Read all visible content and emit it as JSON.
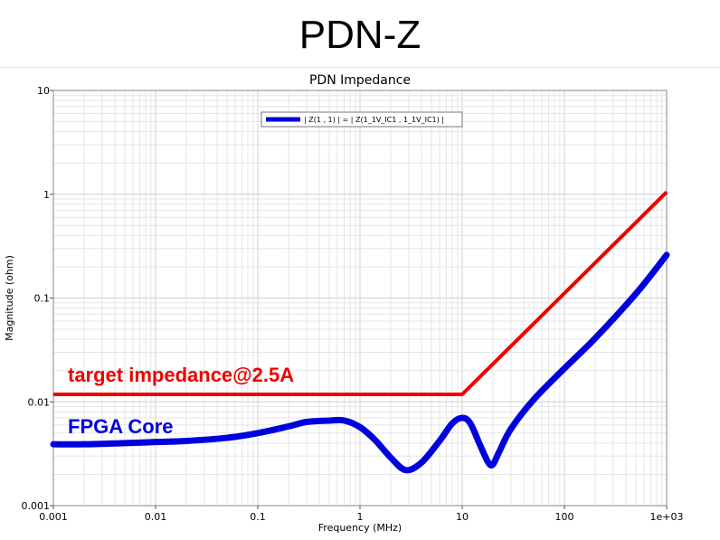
{
  "slide": {
    "title": "PDN-Z"
  },
  "chart_data": {
    "type": "line",
    "title": "PDN Impedance",
    "xlabel": "Frequency (MHz)",
    "ylabel": "Magnitude (ohm)",
    "x_scale": "log",
    "y_scale": "log",
    "xlim": [
      0.001,
      1000
    ],
    "ylim": [
      0.001,
      10
    ],
    "x_ticks": [
      {
        "value": 0.001,
        "label": "0.001"
      },
      {
        "value": 0.01,
        "label": "0.01"
      },
      {
        "value": 0.1,
        "label": "0.1"
      },
      {
        "value": 1,
        "label": "1"
      },
      {
        "value": 10,
        "label": "10"
      },
      {
        "value": 100,
        "label": "100"
      },
      {
        "value": 1000,
        "label": "1e+03"
      }
    ],
    "y_ticks": [
      {
        "value": 0.001,
        "label": "0.001"
      },
      {
        "value": 0.01,
        "label": "0.01"
      },
      {
        "value": 0.1,
        "label": "0.1"
      },
      {
        "value": 1,
        "label": "1"
      },
      {
        "value": 10,
        "label": "10"
      }
    ],
    "grid": true,
    "legend": {
      "position": "top-center",
      "entries": [
        "| Z(1 , 1) | = | Z(1_1V_IC1 , 1_1V_IC1) |"
      ]
    },
    "series": [
      {
        "name": "| Z(1 , 1) | = | Z(1_1V_IC1 , 1_1V_IC1) |",
        "color": "#0000dd",
        "points": [
          [
            0.001,
            0.0039
          ],
          [
            0.002,
            0.0039
          ],
          [
            0.005,
            0.004
          ],
          [
            0.01,
            0.0041
          ],
          [
            0.02,
            0.0042
          ],
          [
            0.05,
            0.0045
          ],
          [
            0.1,
            0.005
          ],
          [
            0.2,
            0.0058
          ],
          [
            0.3,
            0.0064
          ],
          [
            0.5,
            0.0066
          ],
          [
            0.7,
            0.0066
          ],
          [
            1.0,
            0.0057
          ],
          [
            1.4,
            0.0043
          ],
          [
            2.0,
            0.0029
          ],
          [
            2.8,
            0.0022
          ],
          [
            4.0,
            0.0026
          ],
          [
            6.0,
            0.0042
          ],
          [
            8.0,
            0.0062
          ],
          [
            10,
            0.007
          ],
          [
            12,
            0.0062
          ],
          [
            15,
            0.0038
          ],
          [
            18,
            0.0026
          ],
          [
            20,
            0.0025
          ],
          [
            23,
            0.0033
          ],
          [
            30,
            0.0055
          ],
          [
            50,
            0.0105
          ],
          [
            100,
            0.021
          ],
          [
            200,
            0.041
          ],
          [
            500,
            0.11
          ],
          [
            1000,
            0.26
          ]
        ]
      },
      {
        "name": "target impedance",
        "color": "#ee0000",
        "points": [
          [
            0.001,
            0.0118
          ],
          [
            10,
            0.0118
          ],
          [
            1000,
            1.05
          ]
        ]
      }
    ],
    "annotations": [
      {
        "text": "target impedance@2.5A",
        "color": "#ee0000"
      },
      {
        "text": "FPGA Core",
        "color": "#0000dd"
      }
    ]
  }
}
